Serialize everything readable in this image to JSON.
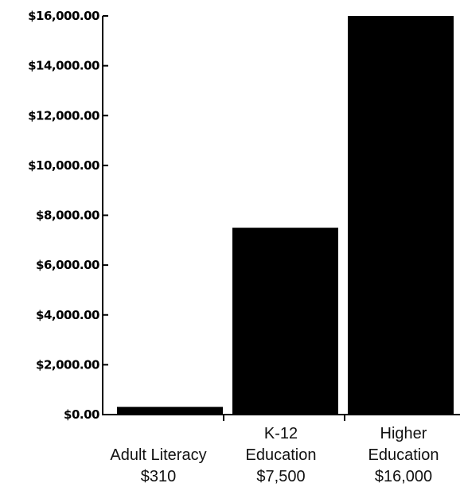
{
  "chart_data": {
    "type": "bar",
    "title": "",
    "xlabel": "",
    "ylabel": "",
    "ylim": [
      0,
      16000
    ],
    "y_ticks": [
      0,
      2000,
      4000,
      6000,
      8000,
      10000,
      12000,
      14000,
      16000
    ],
    "y_tick_labels": [
      "$0.00",
      "$2,000.00",
      "$4,000.00",
      "$6,000.00",
      "$8,000.00",
      "$10,000.00",
      "$12,000.00",
      "$14,000.00",
      "$16,000.00"
    ],
    "categories": [
      {
        "lines": [
          "Adult Literacy",
          "$310"
        ]
      },
      {
        "lines": [
          "K-12",
          "Education",
          "$7,500"
        ]
      },
      {
        "lines": [
          "Higher",
          "Education",
          "$16,000"
        ]
      }
    ],
    "values": [
      310,
      7500,
      16000
    ],
    "bar_color": "#000000",
    "grid": false,
    "legend": "none"
  }
}
